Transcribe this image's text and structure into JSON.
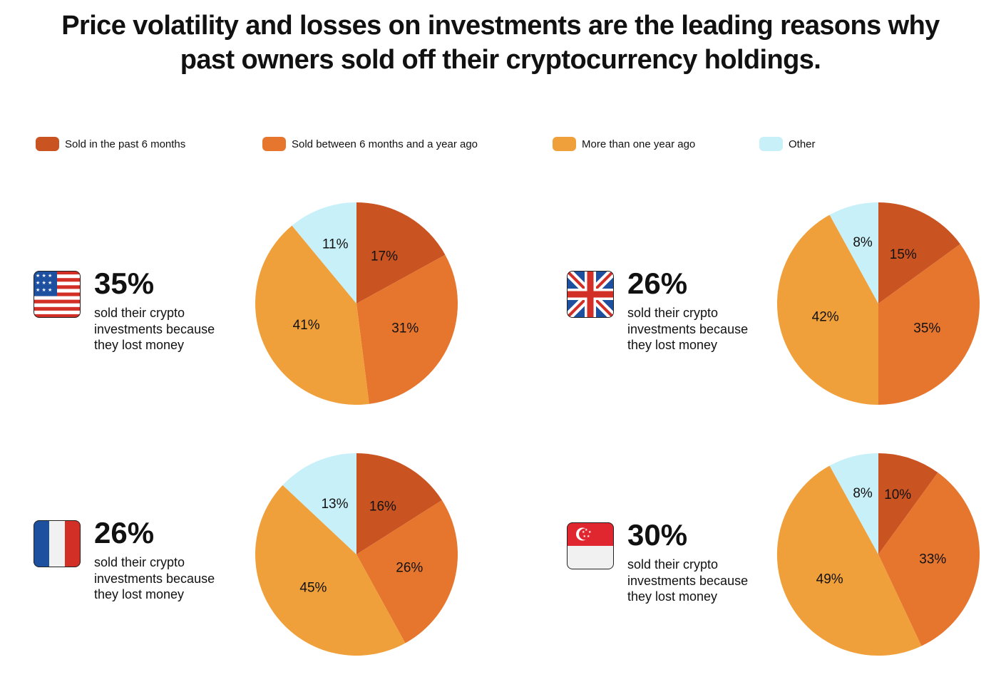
{
  "title": {
    "line1": "Price volatility and losses on investments are the leading reasons why",
    "line2": "past owners sold off their cryptocurrency holdings."
  },
  "legend": [
    {
      "label": "Sold in the past 6 months",
      "color": "#C95422"
    },
    {
      "label": "Sold between 6 months and a year ago",
      "color": "#E6762E"
    },
    {
      "label": "More than one year ago",
      "color": "#F0A03A"
    },
    {
      "label": "Other",
      "color": "#C8F0F8"
    }
  ],
  "panels": [
    {
      "country_flag": "us-flag-icon",
      "headline": "35%",
      "caption": "sold their crypto investments because they lost money"
    },
    {
      "country_flag": "uk-flag-icon",
      "headline": "26%",
      "caption": "sold their crypto investments because they lost money"
    },
    {
      "country_flag": "france-flag-icon",
      "headline": "26%",
      "caption": "sold their crypto investments because they lost money"
    },
    {
      "country_flag": "singapore-flag-icon",
      "headline": "30%",
      "caption": "sold their crypto investments because they lost money"
    }
  ],
  "chart_data": [
    {
      "type": "pie",
      "categories": [
        "Sold in the past 6 months",
        "Sold between 6 months and a year ago",
        "More than one year ago",
        "Other"
      ],
      "values": [
        17,
        31,
        41,
        11
      ],
      "labels": [
        "17%",
        "31%",
        "41%",
        "11%"
      ]
    },
    {
      "type": "pie",
      "categories": [
        "Sold in the past 6 months",
        "Sold between 6 months and a year ago",
        "More than one year ago",
        "Other"
      ],
      "values": [
        15,
        35,
        42,
        8
      ],
      "labels": [
        "15%",
        "35%",
        "42%",
        "8%"
      ]
    },
    {
      "type": "pie",
      "categories": [
        "Sold in the past 6 months",
        "Sold between 6 months and a year ago",
        "More than one year ago",
        "Other"
      ],
      "values": [
        16,
        26,
        45,
        13
      ],
      "labels": [
        "16%",
        "26%",
        "45%",
        "13%"
      ]
    },
    {
      "type": "pie",
      "categories": [
        "Sold in the past 6 months",
        "Sold between 6 months and a year ago",
        "More than one year ago",
        "Other"
      ],
      "values": [
        10,
        33,
        49,
        8
      ],
      "labels": [
        "10%",
        "33%",
        "49%",
        "8%"
      ]
    }
  ]
}
